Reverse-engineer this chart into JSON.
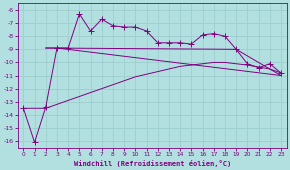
{
  "bg_color": "#b2e0e0",
  "grid_color": "#9ecece",
  "line_color": "#800080",
  "x_ticks": [
    0,
    1,
    2,
    3,
    4,
    5,
    6,
    7,
    8,
    9,
    10,
    11,
    12,
    13,
    14,
    15,
    16,
    17,
    18,
    19,
    20,
    21,
    22,
    23
  ],
  "xlabel": "Windchill (Refroidissement éolien,°C)",
  "ylim": [
    -16.5,
    -5.5
  ],
  "xlim": [
    -0.5,
    23.5
  ],
  "yticks": [
    -16,
    -15,
    -14,
    -13,
    -12,
    -11,
    -10,
    -9,
    -8,
    -7,
    -6
  ],
  "line1_x": [
    0,
    1,
    2,
    3,
    4,
    5,
    6,
    7,
    8,
    9,
    10,
    11,
    12,
    13,
    14,
    15,
    16,
    17,
    18,
    19,
    20,
    21,
    22,
    23
  ],
  "line1_y": [
    -13.5,
    -16.1,
    -13.4,
    -8.9,
    -8.9,
    -6.3,
    -7.6,
    -6.7,
    -7.2,
    -7.3,
    -7.3,
    -7.6,
    -8.5,
    -8.5,
    -8.5,
    -8.6,
    -7.9,
    -7.8,
    -8.0,
    -9.0,
    -10.1,
    -10.4,
    -10.1,
    -10.8
  ],
  "line2_x": [
    0,
    1,
    2,
    3,
    4,
    5,
    6,
    7,
    8,
    9,
    10,
    11,
    12,
    13,
    14,
    15,
    16,
    17,
    18,
    19,
    20,
    21,
    22,
    23
  ],
  "line2_y": [
    -13.5,
    -13.5,
    -13.5,
    -13.2,
    -12.9,
    -12.6,
    -12.3,
    -12.0,
    -11.7,
    -11.4,
    -11.1,
    -10.9,
    -10.7,
    -10.5,
    -10.3,
    -10.2,
    -10.1,
    -10.0,
    -10.0,
    -10.1,
    -10.2,
    -10.35,
    -10.5,
    -10.8
  ],
  "line3_x": [
    2,
    3,
    23
  ],
  "line3_y": [
    -8.9,
    -8.9,
    -11.0
  ],
  "line4_x": [
    2,
    19,
    23
  ],
  "line4_y": [
    -8.9,
    -9.0,
    -11.0
  ],
  "marker": "+",
  "markersize": 4
}
